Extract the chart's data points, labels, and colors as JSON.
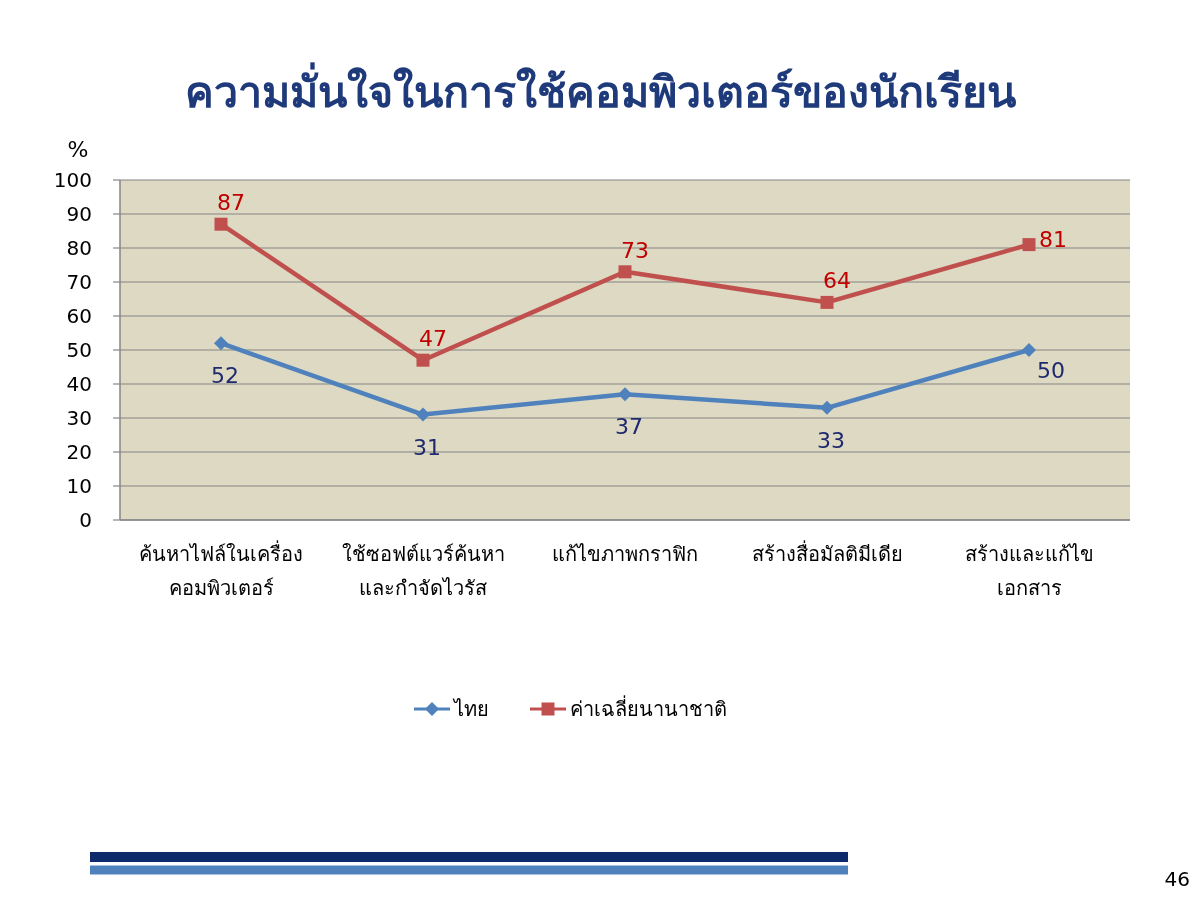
{
  "chart_data": {
    "type": "line",
    "title": "ความมั่นใจในการใช้คอมพิวเตอร์ของนักเรียน",
    "ylabel": "%",
    "categories": [
      "ค้นหาไฟล์ในเครื่อง\nคอมพิวเตอร์",
      "ใช้ซอฟต์แวร์ค้นหา\nและกำจัดไวรัส",
      "แก้ไขภาพกราฟิก",
      "สร้างสื่อมัลติมีเดีย",
      "สร้างและแก้ไข\nเอกสาร"
    ],
    "series": [
      {
        "name": "ไทย",
        "color": "#4f81bd",
        "marker": "diamond",
        "values": [
          52,
          31,
          37,
          33,
          50
        ]
      },
      {
        "name": "ค่าเฉลี่ยนานาชาติ",
        "color": "#c0504d",
        "marker": "square",
        "values": [
          87,
          47,
          73,
          64,
          81
        ]
      }
    ],
    "ylim": [
      0,
      100
    ],
    "yticks": [
      0,
      10,
      20,
      30,
      40,
      50,
      60,
      70,
      80,
      90,
      100
    ],
    "grid": "y",
    "legend": "bottom",
    "data_labels": true,
    "line_style": "solid",
    "annotations": [
      "46"
    ]
  }
}
